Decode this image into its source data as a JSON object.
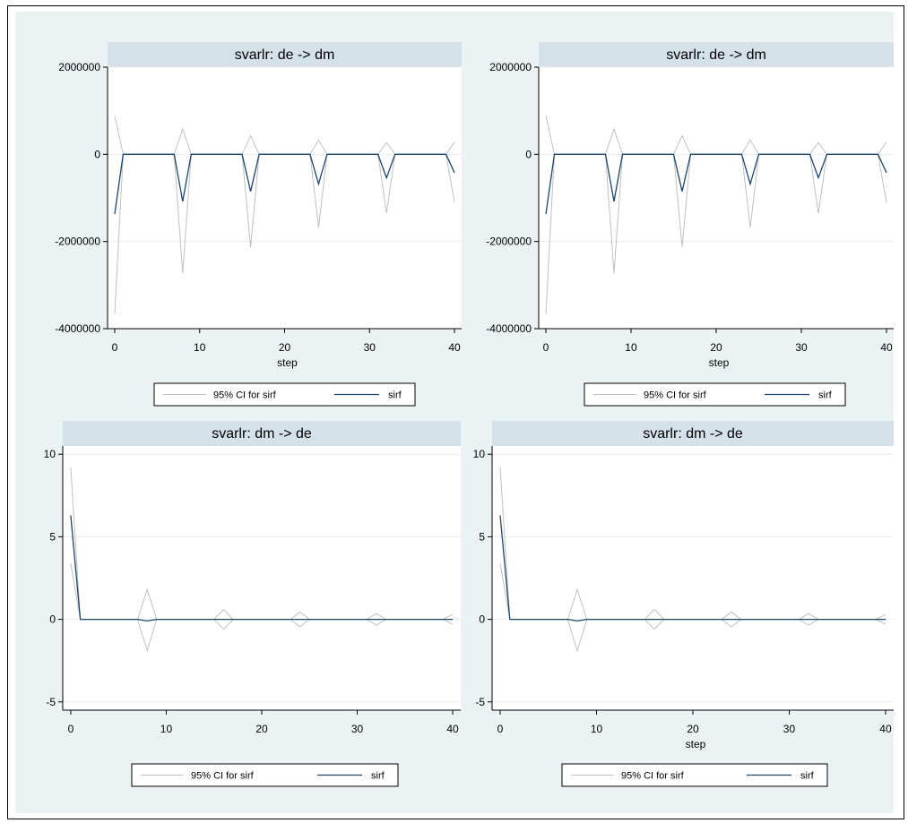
{
  "colors": {
    "background": "#eaf2f3",
    "plot_bg": "#ffffff",
    "title_band": "#d5e1e8",
    "gridline": "#e6eef0",
    "sirf_line": "#1a476f",
    "ci_line": "#c0c0c0"
  },
  "chart_data": [
    {
      "type": "line",
      "title": "svarlr: de -> dm",
      "xlabel": "step",
      "ylabel": "",
      "xlim": [
        0,
        40
      ],
      "ylim": [
        -4000000,
        2000000
      ],
      "xticks": [
        0,
        10,
        20,
        30,
        40
      ],
      "yticks": [
        -4000000,
        -2000000,
        0,
        2000000
      ],
      "ytick_labels": [
        "-4000000",
        "-2000000",
        "0",
        "2000000"
      ],
      "grid": true,
      "legend_position": "bottom",
      "legend": [
        "95% CI for sirf",
        "sirf"
      ],
      "x": [
        0,
        1,
        7,
        8,
        9,
        15,
        16,
        17,
        23,
        24,
        25,
        31,
        32,
        33,
        39,
        40
      ],
      "series": [
        {
          "name": "sirf",
          "values": [
            -1370000,
            0,
            0,
            -1080000,
            0,
            0,
            -850000,
            0,
            0,
            -680000,
            0,
            0,
            -540000,
            0,
            0,
            -420000
          ]
        },
        {
          "name": "95% CI for sirf",
          "role": "upper",
          "values": [
            880000,
            0,
            0,
            580000,
            0,
            0,
            430000,
            0,
            0,
            330000,
            0,
            0,
            270000,
            0,
            0,
            280000
          ]
        },
        {
          "name": "95% CI for sirf",
          "role": "lower",
          "values": [
            -3650000,
            0,
            0,
            -2730000,
            0,
            0,
            -2130000,
            0,
            0,
            -1680000,
            0,
            0,
            -1350000,
            0,
            0,
            -1100000
          ]
        }
      ]
    },
    {
      "type": "line",
      "title": "svarlr: de -> dm",
      "xlabel": "step",
      "ylabel": "",
      "xlim": [
        0,
        40
      ],
      "ylim": [
        -4000000,
        2000000
      ],
      "xticks": [
        0,
        10,
        20,
        30,
        40
      ],
      "yticks": [
        -4000000,
        -2000000,
        0,
        2000000
      ],
      "ytick_labels": [
        "-4000000",
        "-2000000",
        "0",
        "2000000"
      ],
      "grid": true,
      "legend_position": "bottom",
      "legend": [
        "95% CI for sirf",
        "sirf"
      ],
      "x": [
        0,
        1,
        7,
        8,
        9,
        15,
        16,
        17,
        23,
        24,
        25,
        31,
        32,
        33,
        39,
        40
      ],
      "series": [
        {
          "name": "sirf",
          "values": [
            -1370000,
            0,
            0,
            -1080000,
            0,
            0,
            -850000,
            0,
            0,
            -680000,
            0,
            0,
            -540000,
            0,
            0,
            -420000
          ]
        },
        {
          "name": "95% CI for sirf",
          "role": "upper",
          "values": [
            880000,
            0,
            0,
            580000,
            0,
            0,
            430000,
            0,
            0,
            330000,
            0,
            0,
            270000,
            0,
            0,
            280000
          ]
        },
        {
          "name": "95% CI for sirf",
          "role": "lower",
          "values": [
            -3650000,
            0,
            0,
            -2730000,
            0,
            0,
            -2130000,
            0,
            0,
            -1680000,
            0,
            0,
            -1350000,
            0,
            0,
            -1100000
          ]
        }
      ]
    },
    {
      "type": "line",
      "title": "svarlr: dm -> de",
      "xlabel": "",
      "ylabel": "",
      "xlim": [
        0,
        40
      ],
      "ylim": [
        -5.5,
        10.5
      ],
      "xticks": [
        0,
        10,
        20,
        30,
        40
      ],
      "yticks": [
        -5,
        0,
        5,
        10
      ],
      "ytick_labels": [
        "-5",
        "0",
        "5",
        "10"
      ],
      "grid": true,
      "legend_position": "bottom",
      "legend": [
        "95% CI for sirf",
        "sirf"
      ],
      "x": [
        0,
        1,
        7,
        8,
        9,
        15,
        16,
        17,
        23,
        24,
        25,
        31,
        32,
        33,
        39,
        40
      ],
      "series": [
        {
          "name": "sirf",
          "values": [
            6.3,
            0,
            0,
            -0.1,
            0,
            0,
            0,
            0,
            0,
            0,
            0,
            0,
            0,
            0,
            0,
            0
          ]
        },
        {
          "name": "95% CI for sirf",
          "role": "upper",
          "values": [
            9.2,
            0,
            0,
            1.8,
            0,
            0,
            0.6,
            0,
            0,
            0.45,
            0,
            0,
            0.35,
            0,
            0,
            0.3
          ]
        },
        {
          "name": "95% CI for sirf",
          "role": "lower",
          "values": [
            3.4,
            0,
            0,
            -1.9,
            0,
            0,
            -0.6,
            0,
            0,
            -0.45,
            0,
            0,
            -0.35,
            0,
            0,
            -0.3
          ]
        }
      ]
    },
    {
      "type": "line",
      "title": "svarlr: dm -> de",
      "xlabel": "step",
      "ylabel": "",
      "xlim": [
        0,
        40
      ],
      "ylim": [
        -5.5,
        10.5
      ],
      "xticks": [
        0,
        10,
        20,
        30,
        40
      ],
      "yticks": [
        -5,
        0,
        5,
        10
      ],
      "ytick_labels": [
        "-5",
        "0",
        "5",
        "10"
      ],
      "grid": true,
      "legend_position": "bottom",
      "legend": [
        "95% CI for sirf",
        "sirf"
      ],
      "x": [
        0,
        1,
        7,
        8,
        9,
        15,
        16,
        17,
        23,
        24,
        25,
        31,
        32,
        33,
        39,
        40
      ],
      "series": [
        {
          "name": "sirf",
          "values": [
            6.3,
            0,
            0,
            -0.1,
            0,
            0,
            0,
            0,
            0,
            0,
            0,
            0,
            0,
            0,
            0,
            0
          ]
        },
        {
          "name": "95% CI for sirf",
          "role": "upper",
          "values": [
            9.2,
            0,
            0,
            1.8,
            0,
            0,
            0.6,
            0,
            0,
            0.45,
            0,
            0,
            0.35,
            0,
            0,
            0.3
          ]
        },
        {
          "name": "95% CI for sirf",
          "role": "lower",
          "values": [
            3.4,
            0,
            0,
            -1.9,
            0,
            0,
            -0.6,
            0,
            0,
            -0.45,
            0,
            0,
            -0.35,
            0,
            0,
            -0.3
          ]
        }
      ]
    }
  ]
}
